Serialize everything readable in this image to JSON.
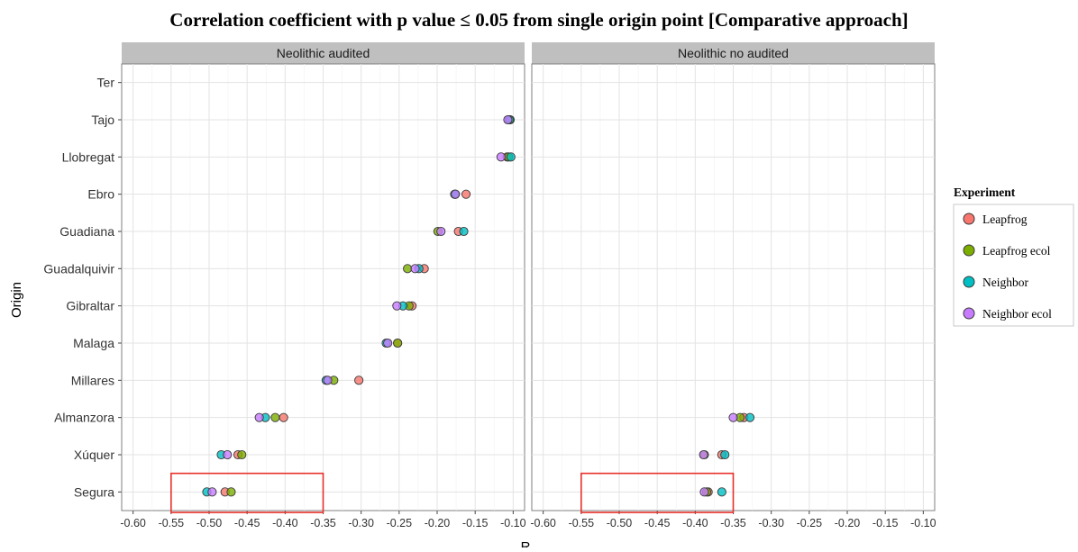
{
  "chart_data": {
    "type": "scatter",
    "title": "Correlation coefficient with p value ≤ 0.05 from single origin point [Comparative approach]",
    "xlabel": "R",
    "ylabel": "Origin",
    "xlim": [
      -0.615,
      -0.085
    ],
    "x_ticks": [
      -0.6,
      -0.55,
      -0.5,
      -0.45,
      -0.4,
      -0.35,
      -0.3,
      -0.25,
      -0.2,
      -0.15,
      -0.1
    ],
    "x_tick_labels": [
      "-0.60",
      "-0.55",
      "-0.50",
      "-0.45",
      "-0.40",
      "-0.35",
      "-0.30",
      "-0.25",
      "-0.20",
      "-0.15",
      "-0.10"
    ],
    "categories": [
      "Ter",
      "Tajo",
      "Llobregat",
      "Ebro",
      "Guadiana",
      "Guadalquivir",
      "Gibraltar",
      "Malaga",
      "Millares",
      "Almanzora",
      "Xúquer",
      "Segura"
    ],
    "grid": true,
    "legend": {
      "title": "Experiment",
      "position": "right",
      "entries": [
        {
          "name": "Leapfrog",
          "color": "#F8766D"
        },
        {
          "name": "Leapfrog ecol",
          "color": "#7CAE00"
        },
        {
          "name": "Neighbor",
          "color": "#00BFC4"
        },
        {
          "name": "Neighbor ecol",
          "color": "#C77CFF"
        }
      ]
    },
    "panels": [
      {
        "label": "Neolithic audited",
        "highlight": {
          "xmin": -0.55,
          "xmax": -0.35,
          "category": "Segura",
          "color": "#e8302a"
        },
        "series": [
          {
            "name": "Leapfrog",
            "points": [
              {
                "origin": "Tajo",
                "x": -0.105
              },
              {
                "origin": "Llobregat",
                "x": -0.108
              },
              {
                "origin": "Ebro",
                "x": -0.162
              },
              {
                "origin": "Guadiana",
                "x": -0.172
              },
              {
                "origin": "Guadalquivir",
                "x": -0.217
              },
              {
                "origin": "Gibraltar",
                "x": -0.233
              },
              {
                "origin": "Malaga",
                "x": -0.252
              },
              {
                "origin": "Millares",
                "x": -0.303
              },
              {
                "origin": "Almanzora",
                "x": -0.402
              },
              {
                "origin": "Xúquer",
                "x": -0.462
              },
              {
                "origin": "Segura",
                "x": -0.479
              }
            ]
          },
          {
            "name": "Leapfrog ecol",
            "points": [
              {
                "origin": "Tajo",
                "x": -0.104
              },
              {
                "origin": "Llobregat",
                "x": -0.106
              },
              {
                "origin": "Ebro",
                "x": -0.176
              },
              {
                "origin": "Guadiana",
                "x": -0.199
              },
              {
                "origin": "Guadalquivir",
                "x": -0.239
              },
              {
                "origin": "Gibraltar",
                "x": -0.237
              },
              {
                "origin": "Malaga",
                "x": -0.252
              },
              {
                "origin": "Millares",
                "x": -0.336
              },
              {
                "origin": "Almanzora",
                "x": -0.413
              },
              {
                "origin": "Xúquer",
                "x": -0.457
              },
              {
                "origin": "Segura",
                "x": -0.471
              }
            ]
          },
          {
            "name": "Neighbor",
            "points": [
              {
                "origin": "Tajo",
                "x": -0.105
              },
              {
                "origin": "Llobregat",
                "x": -0.103
              },
              {
                "origin": "Ebro",
                "x": -0.177
              },
              {
                "origin": "Guadiana",
                "x": -0.165
              },
              {
                "origin": "Guadalquivir",
                "x": -0.224
              },
              {
                "origin": "Gibraltar",
                "x": -0.245
              },
              {
                "origin": "Malaga",
                "x": -0.267
              },
              {
                "origin": "Millares",
                "x": -0.346
              },
              {
                "origin": "Almanzora",
                "x": -0.426
              },
              {
                "origin": "Xúquer",
                "x": -0.484
              },
              {
                "origin": "Segura",
                "x": -0.503
              }
            ]
          },
          {
            "name": "Neighbor ecol",
            "points": [
              {
                "origin": "Tajo",
                "x": -0.107
              },
              {
                "origin": "Llobregat",
                "x": -0.116
              },
              {
                "origin": "Ebro",
                "x": -0.176
              },
              {
                "origin": "Guadiana",
                "x": -0.195
              },
              {
                "origin": "Guadalquivir",
                "x": -0.229
              },
              {
                "origin": "Gibraltar",
                "x": -0.253
              },
              {
                "origin": "Malaga",
                "x": -0.265
              },
              {
                "origin": "Millares",
                "x": -0.344
              },
              {
                "origin": "Almanzora",
                "x": -0.434
              },
              {
                "origin": "Xúquer",
                "x": -0.476
              },
              {
                "origin": "Segura",
                "x": -0.496
              }
            ]
          }
        ]
      },
      {
        "label": "Neolithic no audited",
        "highlight": {
          "xmin": -0.55,
          "xmax": -0.35,
          "category": "Segura",
          "color": "#e8302a"
        },
        "series": [
          {
            "name": "Leapfrog",
            "points": [
              {
                "origin": "Almanzora",
                "x": -0.336
              },
              {
                "origin": "Xúquer",
                "x": -0.365
              },
              {
                "origin": "Segura",
                "x": -0.383
              }
            ]
          },
          {
            "name": "Leapfrog ecol",
            "points": [
              {
                "origin": "Almanzora",
                "x": -0.341
              },
              {
                "origin": "Xúquer",
                "x": -0.388
              },
              {
                "origin": "Segura",
                "x": -0.385
              }
            ]
          },
          {
            "name": "Neighbor",
            "points": [
              {
                "origin": "Almanzora",
                "x": -0.328
              },
              {
                "origin": "Xúquer",
                "x": -0.361
              },
              {
                "origin": "Segura",
                "x": -0.365
              }
            ]
          },
          {
            "name": "Neighbor ecol",
            "points": [
              {
                "origin": "Almanzora",
                "x": -0.35
              },
              {
                "origin": "Xúquer",
                "x": -0.389
              },
              {
                "origin": "Segura",
                "x": -0.388
              }
            ]
          }
        ]
      }
    ]
  }
}
